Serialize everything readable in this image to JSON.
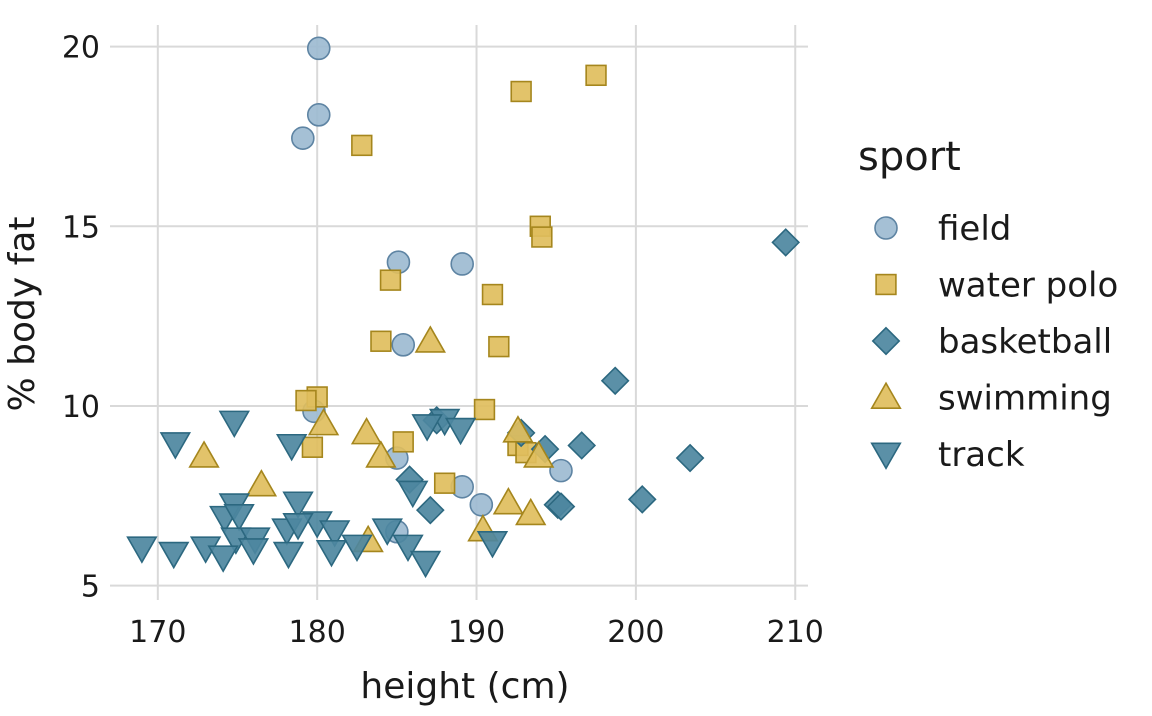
{
  "chart_data": {
    "type": "scatter",
    "title": "",
    "xlabel": "height (cm)",
    "ylabel": "% body fat",
    "xlim": [
      167,
      210.8
    ],
    "ylim": [
      4.6,
      20.6
    ],
    "xticks": [
      170,
      180,
      190,
      200,
      210
    ],
    "yticks": [
      5,
      10,
      15,
      20
    ],
    "grid": true,
    "legend": {
      "title": "sport",
      "position": "right"
    },
    "series": [
      {
        "name": "field",
        "marker": "circle",
        "fill": "#9dbbd1",
        "stroke": "#5e84a3",
        "points": [
          [
            180.1,
            19.95
          ],
          [
            180.1,
            18.1
          ],
          [
            179.1,
            17.45
          ],
          [
            185.1,
            14.0
          ],
          [
            189.1,
            13.95
          ],
          [
            185.4,
            11.7
          ],
          [
            179.8,
            9.85
          ],
          [
            185.0,
            8.55
          ],
          [
            195.3,
            8.2
          ],
          [
            189.1,
            7.75
          ],
          [
            190.3,
            7.25
          ],
          [
            185.0,
            6.5
          ]
        ]
      },
      {
        "name": "water polo",
        "marker": "square",
        "fill": "#e0be5d",
        "stroke": "#a5861d",
        "points": [
          [
            197.5,
            19.2
          ],
          [
            192.8,
            18.75
          ],
          [
            182.8,
            17.25
          ],
          [
            194.0,
            15.0
          ],
          [
            194.1,
            14.7
          ],
          [
            184.6,
            13.5
          ],
          [
            191.0,
            13.1
          ],
          [
            184.0,
            11.8
          ],
          [
            191.4,
            11.65
          ],
          [
            180.0,
            10.25
          ],
          [
            179.3,
            10.15
          ],
          [
            190.5,
            9.9
          ],
          [
            185.4,
            9.0
          ],
          [
            179.7,
            8.85
          ],
          [
            192.6,
            8.9
          ],
          [
            193.1,
            8.7
          ],
          [
            188.0,
            7.85
          ]
        ]
      },
      {
        "name": "basketball",
        "marker": "diamond",
        "fill": "#4d87a0",
        "stroke": "#2c6880",
        "points": [
          [
            209.4,
            14.55
          ],
          [
            198.7,
            10.7
          ],
          [
            187.5,
            9.6
          ],
          [
            192.8,
            9.25
          ],
          [
            194.3,
            8.8
          ],
          [
            196.6,
            8.9
          ],
          [
            203.4,
            8.55
          ],
          [
            185.8,
            7.95
          ],
          [
            200.4,
            7.4
          ],
          [
            195.1,
            7.25
          ],
          [
            195.3,
            7.2
          ],
          [
            187.1,
            7.1
          ]
        ]
      },
      {
        "name": "swimming",
        "marker": "triangle-up",
        "fill": "#e0be5d",
        "stroke": "#a5861d",
        "points": [
          [
            187.1,
            11.8
          ],
          [
            180.4,
            9.5
          ],
          [
            183.1,
            9.25
          ],
          [
            192.6,
            9.3
          ],
          [
            172.9,
            8.6
          ],
          [
            184.0,
            8.6
          ],
          [
            193.9,
            8.6
          ],
          [
            176.5,
            7.8
          ],
          [
            192.0,
            7.3
          ],
          [
            193.4,
            7.0
          ],
          [
            190.4,
            6.55
          ],
          [
            183.2,
            6.25
          ]
        ]
      },
      {
        "name": "track",
        "marker": "triangle-down",
        "fill": "#4d87a0",
        "stroke": "#2c6880",
        "points": [
          [
            171.1,
            8.95
          ],
          [
            174.8,
            9.55
          ],
          [
            178.4,
            8.9
          ],
          [
            188.0,
            9.6
          ],
          [
            186.9,
            9.45
          ],
          [
            189.0,
            9.35
          ],
          [
            186.0,
            7.6
          ],
          [
            174.8,
            7.25
          ],
          [
            178.8,
            7.3
          ],
          [
            174.2,
            6.9
          ],
          [
            175.1,
            6.95
          ],
          [
            178.1,
            6.55
          ],
          [
            180.0,
            6.75
          ],
          [
            181.1,
            6.5
          ],
          [
            178.8,
            6.7
          ],
          [
            174.9,
            6.3
          ],
          [
            176.1,
            6.3
          ],
          [
            173.0,
            6.05
          ],
          [
            169.0,
            6.05
          ],
          [
            171.0,
            5.9
          ],
          [
            174.1,
            5.8
          ],
          [
            176.0,
            6.0
          ],
          [
            178.2,
            5.9
          ],
          [
            180.9,
            5.95
          ],
          [
            182.5,
            6.1
          ],
          [
            184.4,
            6.55
          ],
          [
            185.7,
            6.1
          ],
          [
            186.8,
            5.65
          ],
          [
            191.0,
            6.2
          ]
        ]
      }
    ]
  }
}
